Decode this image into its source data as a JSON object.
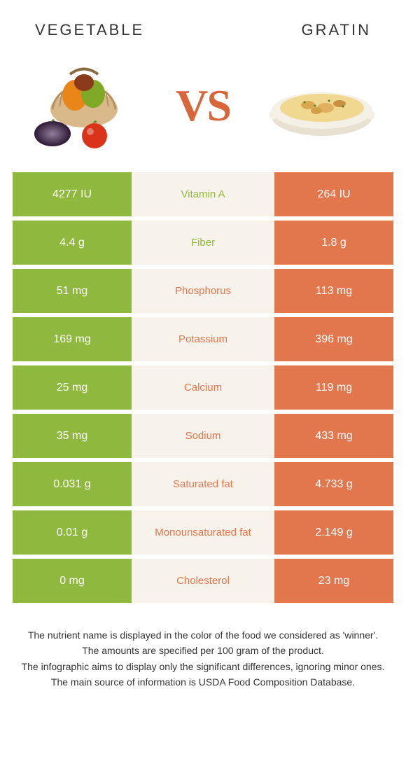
{
  "colors": {
    "green": "#8fb93e",
    "orange": "#e2774e",
    "mid_bg": "#f7f2ea",
    "text_dark": "#333333",
    "white": "#ffffff"
  },
  "header": {
    "left": "vegetable",
    "right": "gratin"
  },
  "hero": {
    "vs": "VS"
  },
  "rows": [
    {
      "label": "Vitamin A",
      "left": "4277 IU",
      "right": "264 IU",
      "winner": "left"
    },
    {
      "label": "Fiber",
      "left": "4.4 g",
      "right": "1.8 g",
      "winner": "left"
    },
    {
      "label": "Phosphorus",
      "left": "51 mg",
      "right": "113 mg",
      "winner": "right"
    },
    {
      "label": "Potassium",
      "left": "169 mg",
      "right": "396 mg",
      "winner": "right"
    },
    {
      "label": "Calcium",
      "left": "25 mg",
      "right": "119 mg",
      "winner": "right"
    },
    {
      "label": "Sodium",
      "left": "35 mg",
      "right": "433 mg",
      "winner": "right"
    },
    {
      "label": "Saturated fat",
      "left": "0.031 g",
      "right": "4.733 g",
      "winner": "right"
    },
    {
      "label": "Monounsaturated fat",
      "left": "0.01 g",
      "right": "2.149 g",
      "winner": "right"
    },
    {
      "label": "Cholesterol",
      "left": "0 mg",
      "right": "23 mg",
      "winner": "right"
    }
  ],
  "footer": {
    "l1": "The nutrient name is displayed in the color of the food we considered as 'winner'.",
    "l2": "The amounts are specified per 100 gram of the product.",
    "l3": "The infographic aims to display only the significant differences, ignoring minor ones.",
    "l4": "The main source of information is USDA Food Composition Database."
  }
}
